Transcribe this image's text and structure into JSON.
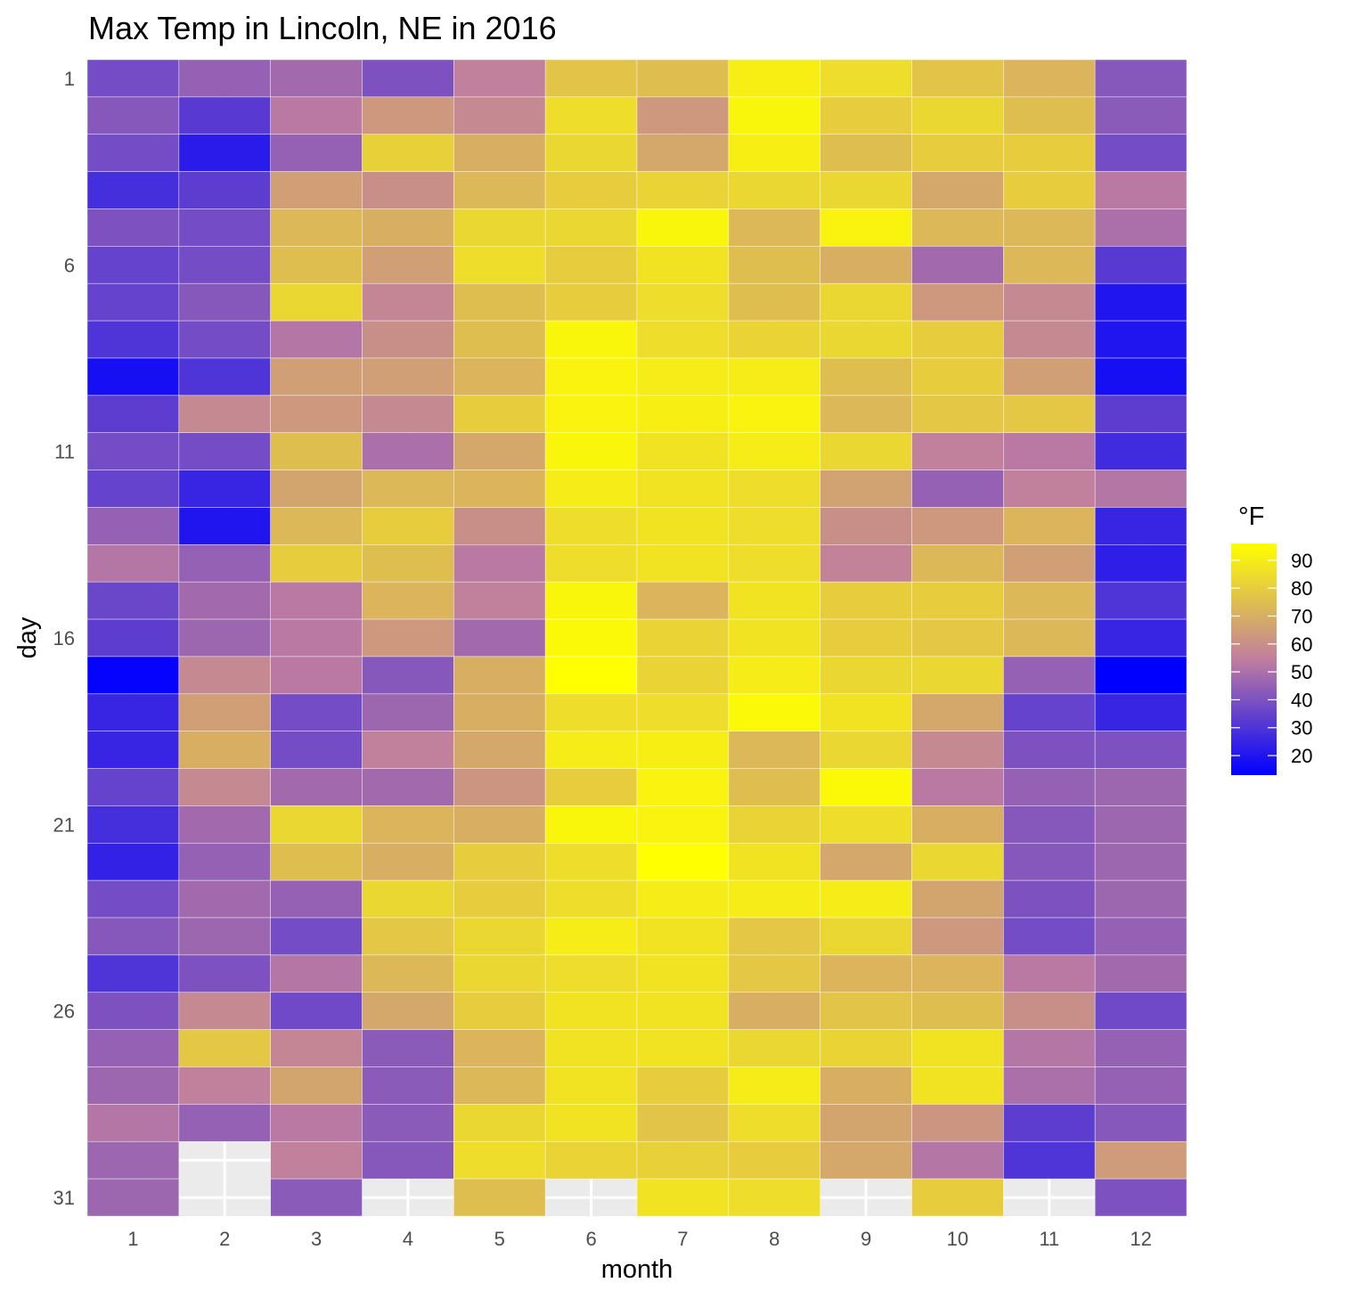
{
  "chart_data": {
    "type": "heatmap",
    "title": "Max Temp in Lincoln, NE in 2016",
    "xlabel": "month",
    "ylabel": "day",
    "x_categories": [
      "1",
      "2",
      "3",
      "4",
      "5",
      "6",
      "7",
      "8",
      "9",
      "10",
      "11",
      "12"
    ],
    "y_categories": [
      "1",
      "2",
      "3",
      "4",
      "5",
      "6",
      "7",
      "8",
      "9",
      "10",
      "11",
      "12",
      "13",
      "14",
      "15",
      "16",
      "17",
      "18",
      "19",
      "20",
      "21",
      "22",
      "23",
      "24",
      "25",
      "26",
      "27",
      "28",
      "29",
      "30",
      "31"
    ],
    "y_tick_labels": [
      "1",
      "6",
      "11",
      "16",
      "21",
      "26",
      "31"
    ],
    "legend": {
      "title": "°F",
      "ticks": [
        90,
        80,
        70,
        60,
        50,
        40,
        30,
        20
      ],
      "range": [
        13,
        96
      ],
      "color_low": "#0000FF",
      "color_mid": "#C07E9E",
      "color_high": "#FFFF00",
      "placement": "right"
    },
    "missing_color": "#E5E5E5",
    "values": [
      [
        38,
        45,
        48,
        40,
        55,
        77,
        75,
        91,
        85,
        77,
        72,
        42
      ],
      [
        42,
        32,
        53,
        63,
        58,
        85,
        63,
        93,
        80,
        83,
        75,
        43
      ],
      [
        38,
        22,
        45,
        81,
        70,
        83,
        68,
        91,
        75,
        80,
        80,
        38
      ],
      [
        28,
        33,
        65,
        60,
        73,
        80,
        82,
        83,
        83,
        68,
        80,
        53
      ],
      [
        40,
        38,
        73,
        70,
        83,
        83,
        93,
        73,
        92,
        73,
        73,
        50
      ],
      [
        35,
        38,
        75,
        65,
        85,
        80,
        87,
        75,
        70,
        48,
        73,
        32
      ],
      [
        35,
        42,
        83,
        57,
        75,
        80,
        85,
        75,
        83,
        63,
        58,
        20
      ],
      [
        30,
        38,
        52,
        60,
        75,
        93,
        85,
        82,
        83,
        80,
        58,
        20
      ],
      [
        18,
        30,
        65,
        65,
        72,
        92,
        90,
        90,
        75,
        80,
        65,
        18
      ],
      [
        33,
        58,
        63,
        58,
        80,
        92,
        91,
        92,
        73,
        78,
        78,
        33
      ],
      [
        38,
        38,
        75,
        50,
        68,
        93,
        87,
        90,
        83,
        55,
        53,
        27
      ],
      [
        35,
        25,
        67,
        73,
        72,
        90,
        87,
        85,
        66,
        45,
        55,
        52
      ],
      [
        45,
        20,
        73,
        80,
        60,
        85,
        87,
        85,
        60,
        63,
        72,
        25
      ],
      [
        52,
        45,
        80,
        75,
        53,
        85,
        87,
        85,
        56,
        73,
        65,
        23
      ],
      [
        36,
        48,
        53,
        72,
        55,
        93,
        72,
        87,
        80,
        80,
        73,
        30
      ],
      [
        33,
        47,
        53,
        63,
        48,
        94,
        82,
        87,
        80,
        78,
        73,
        25
      ],
      [
        14,
        58,
        53,
        42,
        70,
        96,
        82,
        90,
        83,
        83,
        45,
        13
      ],
      [
        25,
        65,
        38,
        47,
        70,
        85,
        85,
        94,
        87,
        68,
        35,
        25
      ],
      [
        25,
        70,
        38,
        55,
        68,
        90,
        91,
        73,
        83,
        58,
        40,
        40
      ],
      [
        35,
        58,
        48,
        48,
        62,
        80,
        92,
        75,
        94,
        53,
        45,
        47
      ],
      [
        28,
        48,
        83,
        72,
        70,
        93,
        92,
        82,
        85,
        70,
        42,
        47
      ],
      [
        24,
        45,
        75,
        70,
        80,
        85,
        96,
        87,
        68,
        83,
        42,
        47
      ],
      [
        38,
        48,
        45,
        83,
        80,
        85,
        90,
        90,
        90,
        67,
        40,
        47
      ],
      [
        42,
        47,
        38,
        78,
        83,
        90,
        87,
        78,
        83,
        63,
        38,
        45
      ],
      [
        30,
        40,
        52,
        73,
        83,
        85,
        87,
        78,
        72,
        72,
        53,
        48
      ],
      [
        40,
        58,
        37,
        68,
        80,
        87,
        87,
        70,
        77,
        75,
        60,
        37
      ],
      [
        45,
        78,
        57,
        43,
        72,
        87,
        87,
        83,
        82,
        87,
        52,
        45
      ],
      [
        47,
        55,
        67,
        43,
        73,
        87,
        80,
        90,
        70,
        87,
        50,
        45
      ],
      [
        52,
        45,
        53,
        43,
        83,
        87,
        77,
        85,
        67,
        62,
        33,
        42
      ],
      [
        47,
        null,
        55,
        42,
        85,
        82,
        81,
        80,
        68,
        52,
        30,
        64
      ],
      [
        47,
        null,
        43,
        null,
        75,
        null,
        87,
        85,
        null,
        80,
        null,
        40
      ]
    ]
  }
}
